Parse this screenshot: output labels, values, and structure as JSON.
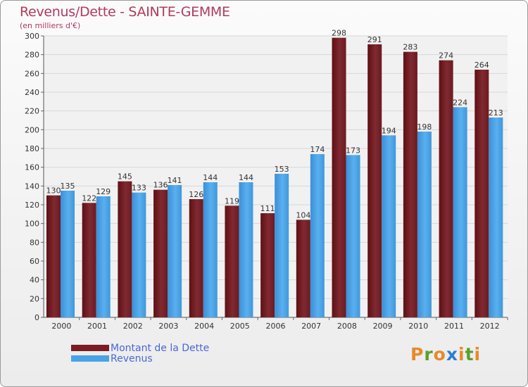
{
  "chart_data": {
    "type": "bar",
    "title": "Revenus/Dette - SAINTE-GEMME",
    "subtitle": "(en milliers d'€)",
    "categories": [
      "2000",
      "2001",
      "2002",
      "2003",
      "2004",
      "2005",
      "2006",
      "2007",
      "2008",
      "2009",
      "2010",
      "2011",
      "2012"
    ],
    "series": [
      {
        "name": "Montant de la Dette",
        "color": "#7a1c22",
        "values": [
          130,
          122,
          145,
          136,
          126,
          119,
          111,
          104,
          298,
          291,
          283,
          274,
          264
        ]
      },
      {
        "name": "Revenus",
        "color": "#4aa3e6",
        "values": [
          135,
          129,
          133,
          141,
          144,
          144,
          153,
          174,
          173,
          194,
          198,
          224,
          213
        ]
      }
    ],
    "ylim": [
      0,
      300
    ],
    "yticks": [
      0,
      20,
      40,
      60,
      80,
      100,
      120,
      140,
      160,
      180,
      200,
      220,
      240,
      260,
      280,
      300
    ],
    "grid": true,
    "legend_position": "bottom-left"
  },
  "logo": {
    "text": "Proxiti"
  }
}
